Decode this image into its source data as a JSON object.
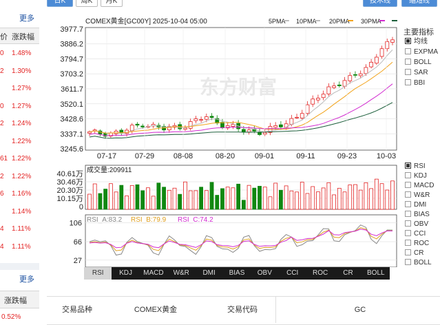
{
  "top_tabs": [
    "日K",
    "周K",
    "月K",
    "技术线",
    "缩短线"
  ],
  "sidebar": {
    "more_top": "更多",
    "col_left_header": "价",
    "col_change_header": "涨跌幅",
    "rows": [
      {
        "left": "0",
        "change": "1.48%"
      },
      {
        "left": "2",
        "change": "1.30%"
      },
      {
        "left": "",
        "change": "1.27%"
      },
      {
        "left": "0",
        "change": "1.27%"
      },
      {
        "left": "2",
        "change": "1.24%"
      },
      {
        "left": "",
        "change": "1.22%"
      },
      {
        "left": "61",
        "change": "1.22%"
      },
      {
        "left": "2",
        "change": "1.22%"
      },
      {
        "left": "6",
        "change": "1.16%"
      },
      {
        "left": "",
        "change": "1.14%"
      },
      {
        "left": "4",
        "change": "1.11%"
      },
      {
        "left": "4",
        "change": "1.11%"
      }
    ],
    "more_bottom": "更多",
    "bottom_header": "涨跌幅",
    "bottom_value": "0.52%"
  },
  "chart": {
    "title": "COMEX黄金[GC00Y] 2025-10-04 05:00",
    "ma_legend": [
      {
        "label": "5PMA",
        "color": "#bbbbbb"
      },
      {
        "label": "10PMA",
        "color": "#bbbbbb"
      },
      {
        "label": "20PMA",
        "color": "#f2a31b"
      },
      {
        "label": "30PMA",
        "color": "#d22bd0"
      },
      {
        "label": "",
        "color": "#1b5e3a"
      }
    ],
    "price_ticks": [
      "3977.7",
      "3886.2",
      "3794.7",
      "3703.2",
      "3611.7",
      "3520.1",
      "3428.6",
      "3337.1",
      "3245.6"
    ],
    "date_ticks": [
      "07-17",
      "07-29",
      "08-08",
      "08-20",
      "09-01",
      "09-11",
      "09-23",
      "10-03"
    ],
    "watermark": "东方财富",
    "main_indicators_title": "主要指标",
    "main_indicators": [
      {
        "label": "均线",
        "checked": true
      },
      {
        "label": "EXPMA",
        "checked": false
      },
      {
        "label": "BOLL",
        "checked": false
      },
      {
        "label": "SAR",
        "checked": false
      },
      {
        "label": "BBI",
        "checked": false
      }
    ],
    "volume_label": "成交量:209911",
    "volume_ticks": [
      "40.61万",
      "30.46万",
      "20.30万",
      "10.15万",
      "0"
    ],
    "rsi_legend": [
      {
        "label": "RSI_A:83.2",
        "color": "#888888"
      },
      {
        "label": "RSI_B:79.9",
        "color": "#e0a020"
      },
      {
        "label": "RSI_C:74.2",
        "color": "#d22bd0"
      }
    ],
    "rsi_ticks": [
      "106",
      "66",
      "27"
    ],
    "sub_indicators": [
      {
        "label": "RSI",
        "checked": true
      },
      {
        "label": "KDJ",
        "checked": false
      },
      {
        "label": "MACD",
        "checked": false
      },
      {
        "label": "W&R",
        "checked": false
      },
      {
        "label": "DMI",
        "checked": false
      },
      {
        "label": "BIAS",
        "checked": false
      },
      {
        "label": "OBV",
        "checked": false
      },
      {
        "label": "CCI",
        "checked": false
      },
      {
        "label": "ROC",
        "checked": false
      },
      {
        "label": "CR",
        "checked": false
      },
      {
        "label": "BOLL",
        "checked": false
      }
    ],
    "tabs": [
      "RSI",
      "KDJ",
      "MACD",
      "W&R",
      "DMI",
      "BIAS",
      "OBV",
      "CCI",
      "ROC",
      "CR",
      "BOLL"
    ],
    "active_tab": "RSI",
    "up_color": "#e32222",
    "down_color": "#118811"
  },
  "info_table": {
    "label1": "交易品种",
    "value1": "COMEX黄金",
    "label2": "交易代码",
    "value2": "GC"
  }
}
